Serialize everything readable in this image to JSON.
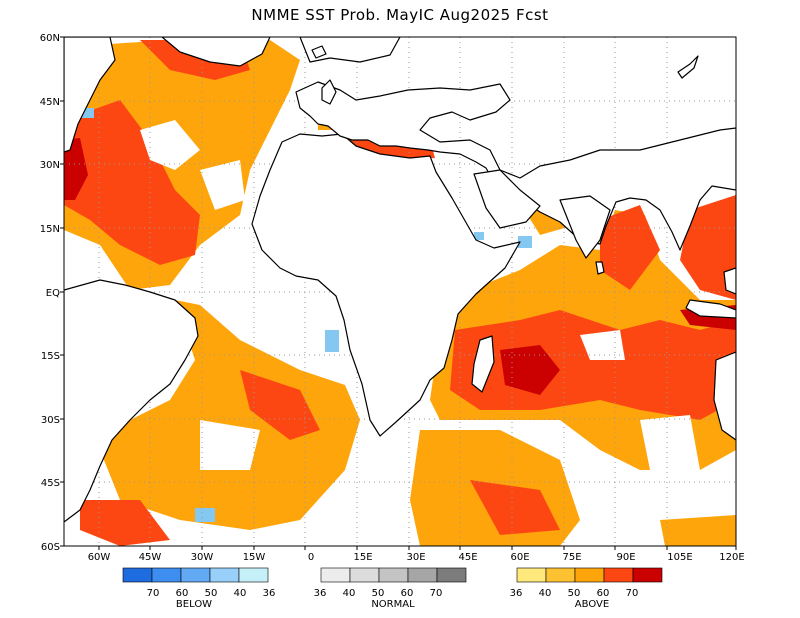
{
  "title": "NMME SST Prob. MayIC  Aug2025 Fcst",
  "map": {
    "lon_range": [
      -75,
      120
    ],
    "lat_range": [
      -60,
      60
    ],
    "lat_ticks": [
      "60N",
      "45N",
      "30N",
      "15N",
      "EQ",
      "15S",
      "30S",
      "45S",
      "60S"
    ],
    "lon_ticks": [
      "60W",
      "45W",
      "30W",
      "15W",
      "0",
      "15E",
      "30E",
      "45E",
      "60E",
      "75E",
      "90E",
      "105E",
      "120E"
    ],
    "grid": true,
    "colors": {
      "above_40": "#fdc232",
      "above_50": "#fda50b",
      "above_60": "#fd4712",
      "above_70": "#cb0000",
      "below_40": "#84c8f2",
      "land_outline": "#000000",
      "grid": "#999999"
    }
  },
  "legend": {
    "below": {
      "label": "BELOW",
      "ticks": [
        "70",
        "60",
        "50",
        "40",
        "36"
      ],
      "colors": [
        "#1f6be0",
        "#3d8ef0",
        "#63aaf5",
        "#98d0fa",
        "#c6f0f8"
      ]
    },
    "normal": {
      "label": "NORMAL",
      "ticks": [
        "36",
        "40",
        "50",
        "60",
        "70"
      ],
      "colors": [
        "#ececec",
        "#dcdcdc",
        "#c4c4c4",
        "#a6a6a6",
        "#7c7c7c"
      ]
    },
    "above": {
      "label": "ABOVE",
      "ticks": [
        "36",
        "40",
        "50",
        "60",
        "70"
      ],
      "colors": [
        "#ffe87c",
        "#fdc232",
        "#fda50b",
        "#fd4712",
        "#cb0000"
      ]
    }
  }
}
